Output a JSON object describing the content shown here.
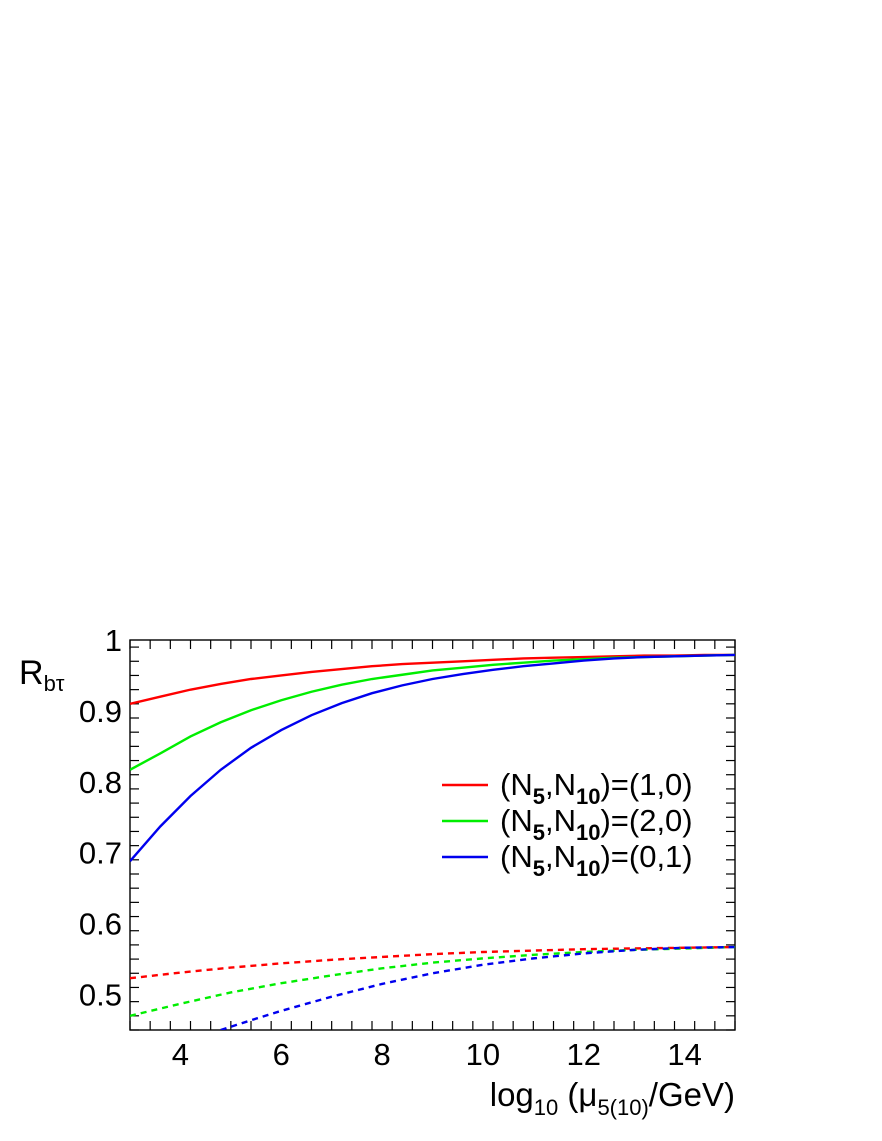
{
  "chart_data": {
    "type": "line",
    "title": "",
    "xlabel": {
      "main": "log",
      "main_sub": "10",
      "paren_open": " (μ",
      "mu_sub": "5(10)",
      "unit": "/GeV)"
    },
    "ylabel": {
      "main": "R",
      "sub": "bτ"
    },
    "xlim": [
      3,
      15
    ],
    "ylim": [
      0.45,
      1.0
    ],
    "xticks": [
      4,
      6,
      8,
      10,
      12,
      14
    ],
    "xtick_labels": [
      "4",
      "6",
      "8",
      "10",
      "12",
      "14"
    ],
    "yticks": [
      0.5,
      0.6,
      0.7,
      0.8,
      0.9,
      1.0
    ],
    "ytick_labels": [
      "0.5",
      "0.6",
      "0.7",
      "0.8",
      "0.9",
      "1"
    ],
    "grid": false,
    "legend_position": "right-middle",
    "series": [
      {
        "name": "(N5,N10)=(1,0)",
        "legend": {
          "open": "(N",
          "sub1": "5",
          "mid": ",N",
          "sub2": "10",
          "tail": ")=(1,0)"
        },
        "color": "#ff0000",
        "style": "solid",
        "x": [
          3,
          3.6,
          4.2,
          4.8,
          5.4,
          6,
          6.6,
          7.2,
          7.8,
          8.4,
          9,
          9.6,
          10.2,
          10.8,
          11.4,
          12,
          12.6,
          13.2,
          13.8,
          14.4,
          15
        ],
        "y": [
          0.91,
          0.92,
          0.93,
          0.938,
          0.945,
          0.95,
          0.955,
          0.959,
          0.963,
          0.966,
          0.968,
          0.97,
          0.972,
          0.974,
          0.975,
          0.976,
          0.977,
          0.978,
          0.978,
          0.979,
          0.979
        ]
      },
      {
        "name": "(N5,N10)=(2,0)",
        "legend": {
          "open": "(N",
          "sub1": "5",
          "mid": ",N",
          "sub2": "10",
          "tail": ")=(2,0)"
        },
        "color": "#00ee00",
        "style": "solid",
        "x": [
          3,
          3.6,
          4.2,
          4.8,
          5.4,
          6,
          6.6,
          7.2,
          7.8,
          8.4,
          9,
          9.6,
          10.2,
          10.8,
          11.4,
          12,
          12.6,
          13.2,
          13.8,
          14.4,
          15
        ],
        "y": [
          0.817,
          0.84,
          0.864,
          0.884,
          0.901,
          0.915,
          0.927,
          0.937,
          0.945,
          0.951,
          0.957,
          0.961,
          0.965,
          0.968,
          0.971,
          0.973,
          0.975,
          0.976,
          0.977,
          0.978,
          0.979
        ]
      },
      {
        "name": "(N5,N10)=(0,1)",
        "legend": {
          "open": "(N",
          "sub1": "5",
          "mid": ",N",
          "sub2": "10",
          "tail": ")=(0,1)"
        },
        "color": "#0000ee",
        "style": "solid",
        "x": [
          3,
          3.6,
          4.2,
          4.8,
          5.4,
          6,
          6.6,
          7.2,
          7.8,
          8.4,
          9,
          9.6,
          10.2,
          10.8,
          11.4,
          12,
          12.6,
          13.2,
          13.8,
          14.4,
          15
        ],
        "y": [
          0.688,
          0.737,
          0.78,
          0.817,
          0.848,
          0.873,
          0.894,
          0.911,
          0.925,
          0.936,
          0.945,
          0.952,
          0.958,
          0.963,
          0.967,
          0.971,
          0.974,
          0.976,
          0.977,
          0.978,
          0.979
        ]
      },
      {
        "color": "#ff0000",
        "style": "dashed",
        "x": [
          3,
          4,
          5,
          6,
          7,
          8,
          9,
          10,
          11,
          12,
          13,
          14,
          15
        ],
        "y": [
          0.523,
          0.531,
          0.538,
          0.544,
          0.549,
          0.553,
          0.557,
          0.56,
          0.562,
          0.564,
          0.565,
          0.566,
          0.567
        ]
      },
      {
        "color": "#00ee00",
        "style": "dashed",
        "x": [
          3,
          4,
          5,
          6,
          7,
          8,
          9,
          10,
          11,
          12,
          13,
          14,
          15
        ],
        "y": [
          0.47,
          0.487,
          0.503,
          0.516,
          0.527,
          0.537,
          0.545,
          0.551,
          0.556,
          0.56,
          0.563,
          0.565,
          0.567
        ]
      },
      {
        "color": "#0000ee",
        "style": "dashed",
        "x": [
          4.8,
          5.5,
          6,
          7,
          8,
          9,
          10,
          11,
          12,
          13,
          14,
          15
        ],
        "y": [
          0.45,
          0.466,
          0.477,
          0.497,
          0.515,
          0.53,
          0.542,
          0.551,
          0.558,
          0.563,
          0.566,
          0.567
        ]
      }
    ]
  }
}
